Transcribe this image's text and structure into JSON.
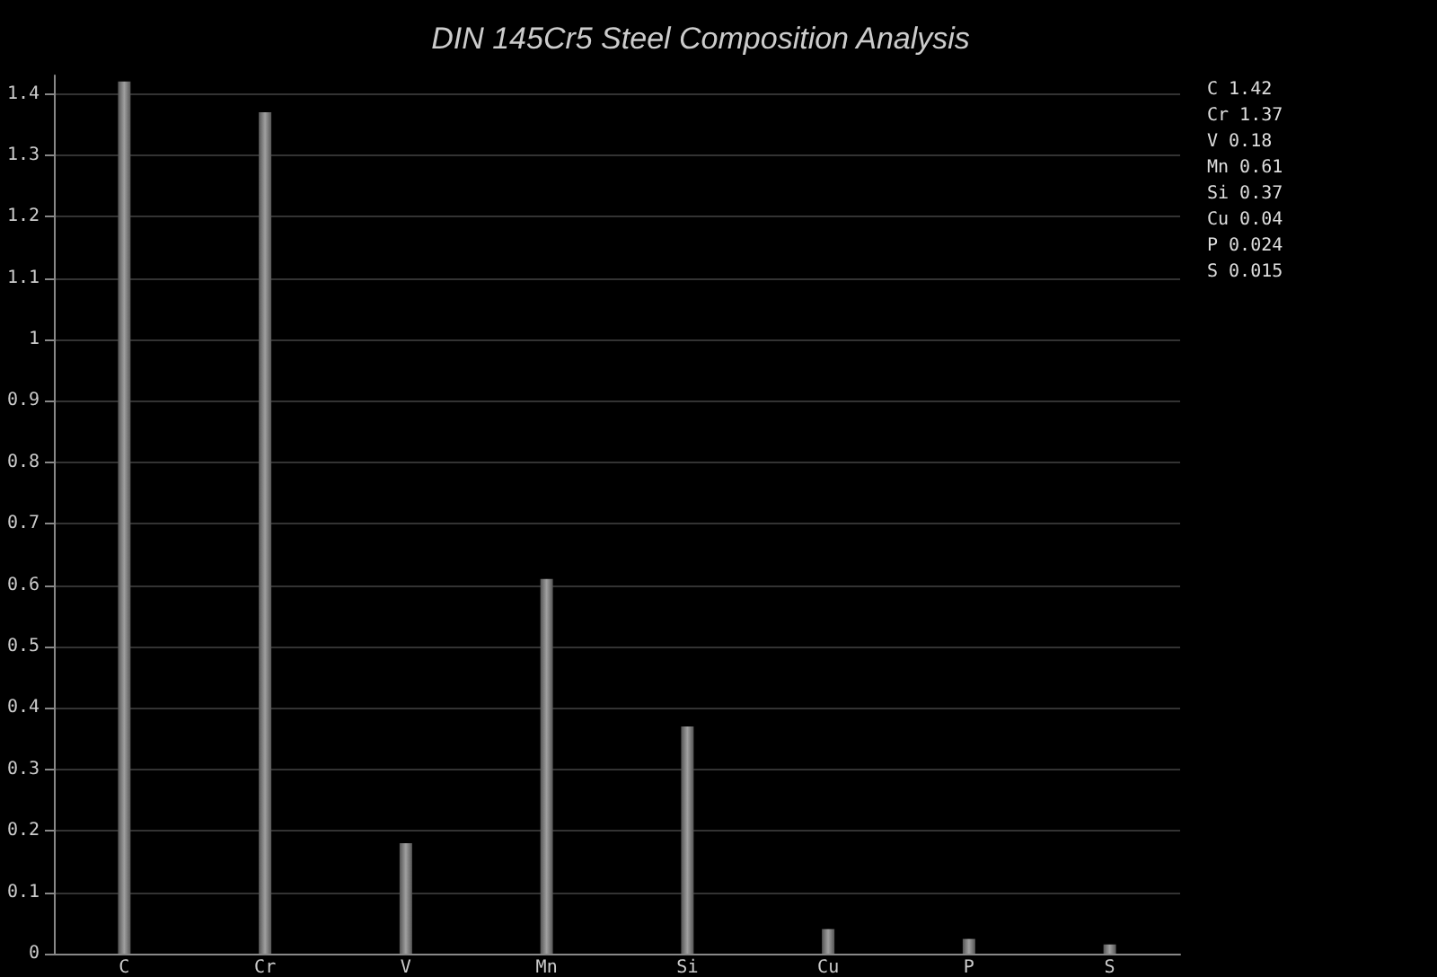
{
  "chart_data": {
    "type": "bar",
    "title": "DIN 145Cr5 Steel Composition Analysis",
    "categories": [
      "C",
      "Cr",
      "V",
      "Mn",
      "Si",
      "Cu",
      "P",
      "S"
    ],
    "values": [
      1.42,
      1.37,
      0.18,
      0.61,
      0.37,
      0.04,
      0.024,
      0.015
    ],
    "color": "#a0a0a0",
    "ylim": [
      0,
      1.43
    ],
    "yticks": [
      0,
      0.1,
      0.2,
      0.3,
      0.4,
      0.5,
      0.6,
      0.7,
      0.8,
      0.9,
      1,
      1.1,
      1.2,
      1.3,
      1.4
    ],
    "grid": "y",
    "annotations": [
      "C 1.42",
      "Cr 1.37",
      "V 0.18",
      "Mn 0.61",
      "Si 0.37",
      "Cu 0.04",
      "P 0.024",
      "S 0.015"
    ]
  }
}
